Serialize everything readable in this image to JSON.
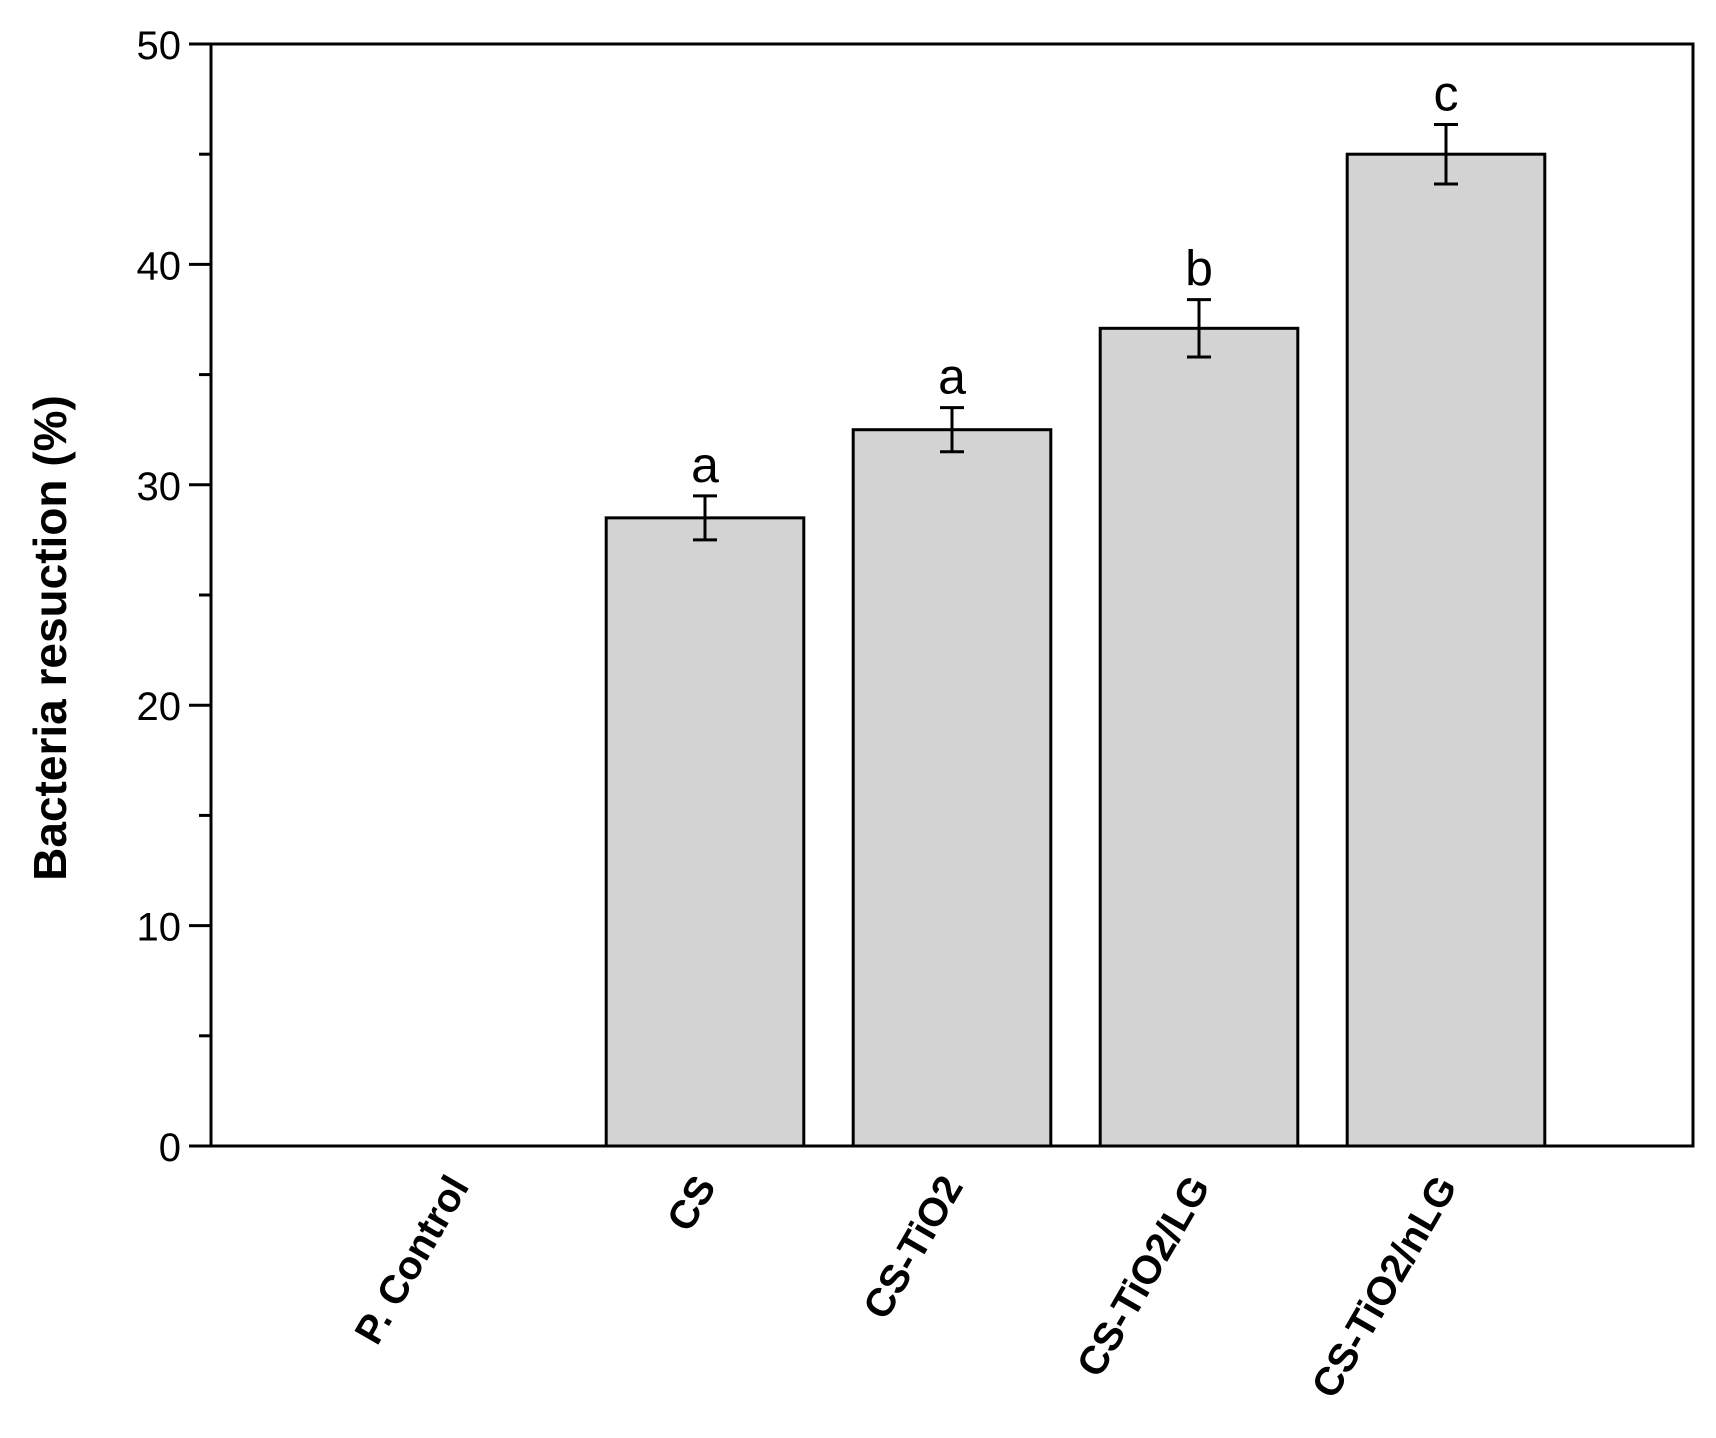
{
  "chart_data": {
    "type": "bar",
    "y_label": "Bacteria resuction (%)",
    "categories": [
      "P. Control",
      "CS",
      "CS-TiO2",
      "CS-TiO2/LG",
      "CS-TiO2/nLG"
    ],
    "values": [
      0,
      28.5,
      32.5,
      37.1,
      45.0
    ],
    "errors": [
      null,
      1.0,
      1.0,
      1.3,
      1.35
    ],
    "annotations": [
      null,
      "a",
      "a",
      "b",
      "c"
    ],
    "color": "#d3d3d3",
    "ylim": [
      0,
      50
    ],
    "yticks": [
      0,
      10,
      20,
      30,
      40,
      50
    ],
    "minor_yticks": [
      5,
      15,
      25,
      35,
      45
    ]
  }
}
